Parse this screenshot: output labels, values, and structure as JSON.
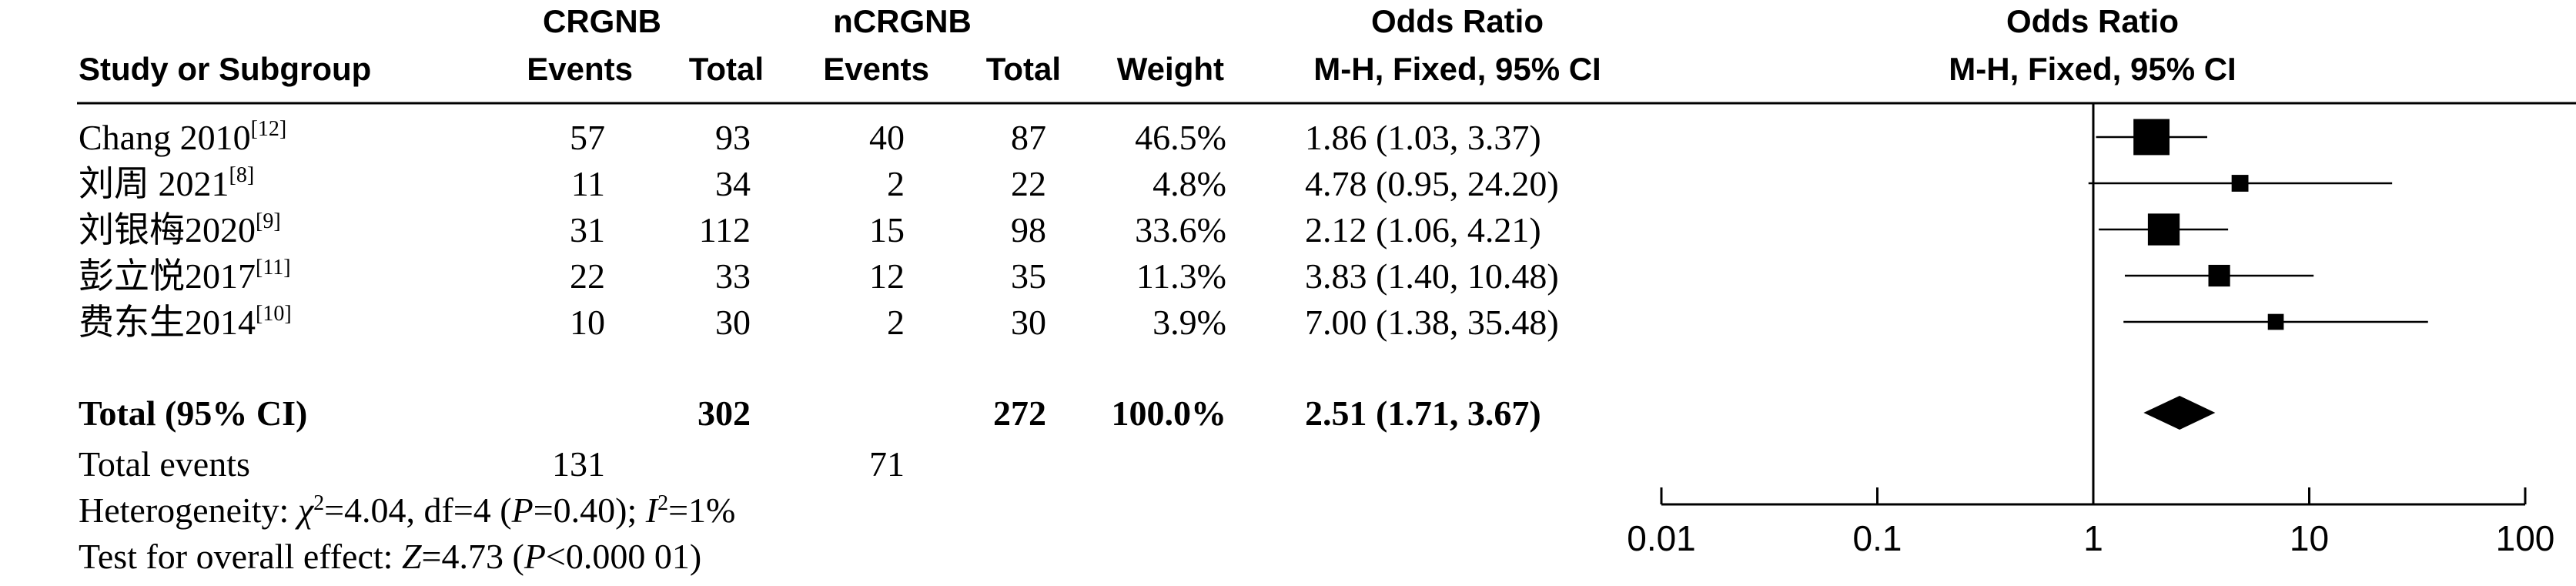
{
  "headers": {
    "study": "Study or Subgroup",
    "group1": "CRGNB",
    "group2": "nCRGNB",
    "events": "Events",
    "total": "Total",
    "weight": "Weight",
    "or_title": "Odds Ratio",
    "or_method": "M-H, Fixed, 95% CI",
    "plot_title": "Odds Ratio",
    "plot_method": "M-H, Fixed, 95% CI"
  },
  "studies": [
    {
      "name": "Chang 2010",
      "ref": "[12]",
      "e1": "57",
      "t1": "93",
      "e2": "40",
      "t2": "87",
      "weight": "46.5%",
      "ci_text": "1.86 (1.03, 3.37)"
    },
    {
      "name": "刘周 2021",
      "ref": "[8]",
      "e1": "11",
      "t1": "34",
      "e2": "2",
      "t2": "22",
      "weight": "4.8%",
      "ci_text": "4.78 (0.95, 24.20)"
    },
    {
      "name": "刘银梅2020",
      "ref": "[9]",
      "e1": "31",
      "t1": "112",
      "e2": "15",
      "t2": "98",
      "weight": "33.6%",
      "ci_text": "2.12 (1.06, 4.21)"
    },
    {
      "name": "彭立悦2017",
      "ref": "[11]",
      "e1": "22",
      "t1": "33",
      "e2": "12",
      "t2": "35",
      "weight": "11.3%",
      "ci_text": "3.83 (1.40, 10.48)"
    },
    {
      "name": "费东生2014",
      "ref": "[10]",
      "e1": "10",
      "t1": "30",
      "e2": "2",
      "t2": "30",
      "weight": "3.9%",
      "ci_text": "7.00 (1.38, 35.48)"
    }
  ],
  "total": {
    "label": "Total (95% CI)",
    "t1": "302",
    "t2": "272",
    "weight": "100.0%",
    "ci_text": "2.51 (1.71, 3.67)"
  },
  "total_events": {
    "label": "Total events",
    "e1": "131",
    "e2": "71"
  },
  "heterogeneity": {
    "label": "Heterogeneity: ",
    "chi": "χ",
    "chi_sup": "2",
    "chi_val": "=4.04, df=4 (",
    "p": "P",
    "p_val": "=0.40); ",
    "i": "I",
    "i_sup": "2",
    "i_val": "=1%"
  },
  "overall": {
    "label": "Test for overall effect: ",
    "z": "Z",
    "z_val": "=4.73 (",
    "p": "P",
    "p_val": "<0.000 01)"
  },
  "chart_data": {
    "type": "scatter",
    "xscale": "log",
    "xlim": [
      0.01,
      100
    ],
    "ticks": [
      0.01,
      0.1,
      1,
      10,
      100
    ],
    "tick_labels": [
      "0.01",
      "0.1",
      "1",
      "10",
      "100"
    ],
    "null_line": 1,
    "points": [
      {
        "or": 1.86,
        "lo": 1.03,
        "hi": 3.37,
        "weight": 46.5
      },
      {
        "or": 4.78,
        "lo": 0.95,
        "hi": 24.2,
        "weight": 4.8
      },
      {
        "or": 2.12,
        "lo": 1.06,
        "hi": 4.21,
        "weight": 33.6
      },
      {
        "or": 3.83,
        "lo": 1.4,
        "hi": 10.48,
        "weight": 11.3
      },
      {
        "or": 7.0,
        "lo": 1.38,
        "hi": 35.48,
        "weight": 3.9
      }
    ],
    "pooled": {
      "or": 2.51,
      "lo": 1.71,
      "hi": 3.67
    }
  }
}
